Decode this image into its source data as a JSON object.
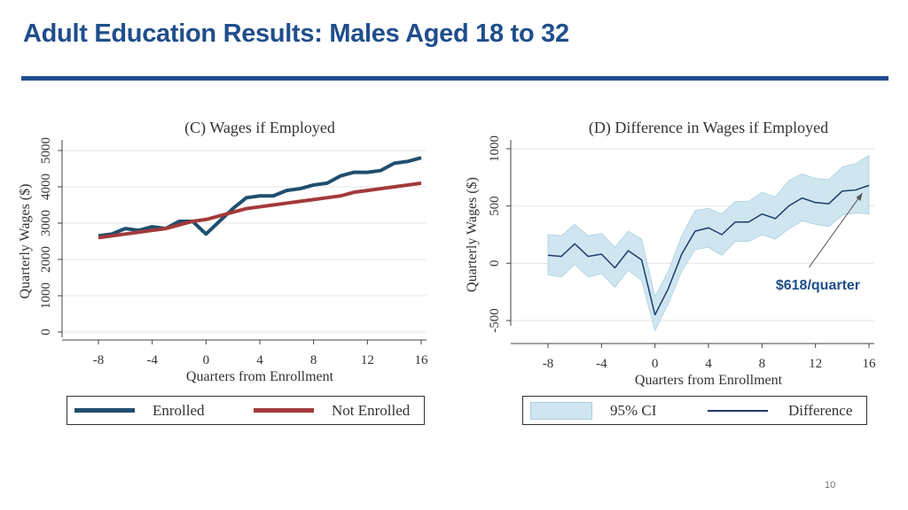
{
  "slide": {
    "title": "Adult Education Results: Males Aged 18 to 32",
    "page_number": "10"
  },
  "chart_data": [
    {
      "id": "C",
      "type": "line",
      "title": "(C) Wages if Employed",
      "xlabel": "Quarters from Enrollment",
      "ylabel": "Quarterly Wages ($)",
      "xlim": [
        -8,
        16
      ],
      "ylim": [
        0,
        5000
      ],
      "xticks": [
        -8,
        -4,
        0,
        4,
        8,
        12,
        16
      ],
      "yticks": [
        0,
        1000,
        2000,
        3000,
        4000,
        5000
      ],
      "grid": true,
      "legend_position": "bottom",
      "x": [
        -8,
        -7,
        -6,
        -5,
        -4,
        -3,
        -2,
        -1,
        0,
        1,
        2,
        3,
        4,
        5,
        6,
        7,
        8,
        9,
        10,
        11,
        12,
        13,
        14,
        15,
        16
      ],
      "series": [
        {
          "name": "Enrolled",
          "color": "#1f4e6e",
          "values": [
            2650,
            2700,
            2850,
            2800,
            2900,
            2850,
            3050,
            3050,
            2700,
            3050,
            3400,
            3700,
            3750,
            3750,
            3900,
            3950,
            4050,
            4100,
            4300,
            4400,
            4400,
            4450,
            4650,
            4700,
            4800
          ]
        },
        {
          "name": "Not Enrolled",
          "color": "#a33a3a",
          "values": [
            2600,
            2650,
            2700,
            2750,
            2800,
            2850,
            2950,
            3050,
            3100,
            3200,
            3300,
            3400,
            3450,
            3500,
            3550,
            3600,
            3650,
            3700,
            3750,
            3850,
            3900,
            3950,
            4000,
            4050,
            4100
          ]
        }
      ]
    },
    {
      "id": "D",
      "type": "line",
      "title": "(D) Difference in Wages if Employed",
      "xlabel": "Quarters from Enrollment",
      "ylabel": "Quarterly Wages ($)",
      "xlim": [
        -8,
        16
      ],
      "ylim": [
        -500,
        1000
      ],
      "xticks": [
        -8,
        -4,
        0,
        4,
        8,
        12,
        16
      ],
      "yticks": [
        -500,
        0,
        500,
        1000
      ],
      "grid": true,
      "legend_position": "bottom",
      "x": [
        -8,
        -7,
        -6,
        -5,
        -4,
        -3,
        -2,
        -1,
        0,
        1,
        2,
        3,
        4,
        5,
        6,
        7,
        8,
        9,
        10,
        11,
        12,
        13,
        14,
        15,
        16
      ],
      "series": [
        {
          "name": "Difference",
          "color": "#1f3a6e",
          "values": [
            70,
            60,
            170,
            60,
            80,
            -40,
            110,
            30,
            -450,
            -220,
            80,
            280,
            310,
            250,
            360,
            360,
            430,
            390,
            500,
            570,
            530,
            520,
            630,
            640,
            680
          ]
        },
        {
          "name": "95% CI",
          "type": "band",
          "color": "#cfe6f0",
          "lower": [
            -100,
            -120,
            -10,
            -120,
            -90,
            -210,
            -60,
            -150,
            -590,
            -350,
            -70,
            120,
            140,
            70,
            190,
            190,
            250,
            210,
            300,
            370,
            340,
            320,
            420,
            440,
            430
          ],
          "upper": [
            250,
            240,
            340,
            240,
            260,
            140,
            280,
            210,
            -290,
            -70,
            240,
            460,
            480,
            430,
            540,
            540,
            620,
            580,
            720,
            780,
            740,
            730,
            840,
            870,
            940
          ]
        }
      ],
      "annotations": [
        {
          "text": "$618/quarter",
          "color": "#1f4e8c",
          "arrow_to_x": 15.5
        }
      ]
    }
  ]
}
